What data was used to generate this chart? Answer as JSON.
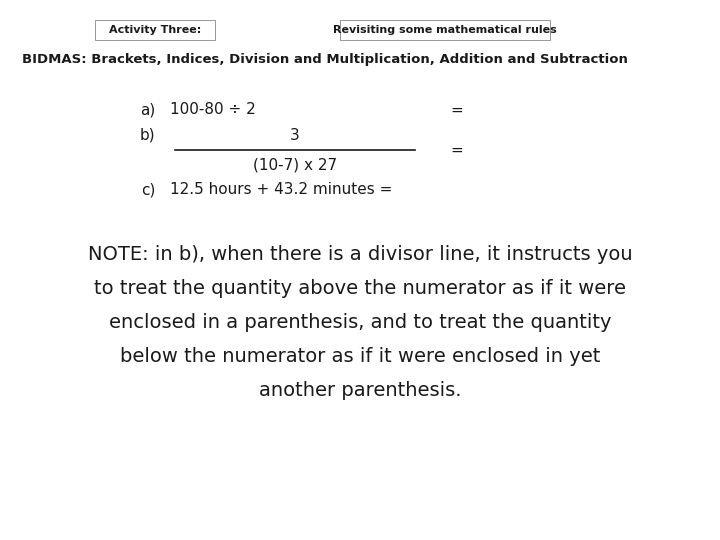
{
  "bg_color": "#ffffff",
  "header_left": "Activity Three:",
  "header_right": "Revisiting some mathematical rules",
  "bidmas_line": "BIDMAS: Brackets, Indices, Division and Multiplication, Addition and Subtraction",
  "item_a_label": "a)",
  "item_a_text": "100-80 ÷ 2",
  "item_a_equals": "=",
  "item_b_label": "b)",
  "item_b_numerator": "3",
  "item_b_denominator": "(10-7) x 27",
  "item_b_equals": "=",
  "item_c_label": "c)",
  "item_c_text": "12.5 hours + 43.2 minutes =",
  "note_lines": [
    "NOTE: in b), when there is a divisor line, it instructs you",
    "to treat the quantity above the numerator as if it were",
    "enclosed in a parenthesis, and to treat the quantity",
    "below the numerator as if it were enclosed in yet",
    "another parenthesis."
  ],
  "header_fontsize": 8,
  "bidmas_fontsize": 9.5,
  "item_fontsize": 11,
  "note_fontsize": 14,
  "text_color": "#1a1a1a"
}
